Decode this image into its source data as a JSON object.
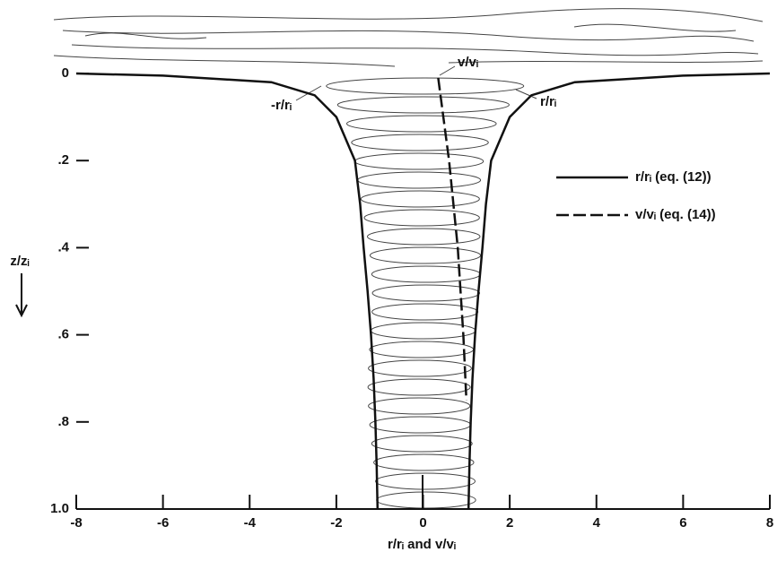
{
  "chart_data": {
    "type": "line",
    "xlabel": "r/rᵢ and v/vᵢ",
    "ylabel": "z/zᵢ",
    "xlim": [
      -8,
      8
    ],
    "xticks": [
      -8,
      -6,
      -4,
      -2,
      0,
      2,
      4,
      6,
      8
    ],
    "ylim": [
      1,
      0
    ],
    "yticks": [
      0,
      {
        "value": 0.2,
        "label": ".2"
      },
      {
        "value": 0.4,
        "label": ".4"
      },
      {
        "value": 0.6,
        "label": ".6"
      },
      {
        "value": 0.8,
        "label": ".8"
      },
      {
        "value": 1,
        "label": "1.0"
      }
    ],
    "series": [
      {
        "name": "r/rᵢ (eq. (12))",
        "color": "#111111",
        "dash": false,
        "x": [
          8,
          6,
          3.5,
          2.5,
          2.0,
          1.57,
          1.45,
          1.37,
          1.28,
          1.2,
          1.14,
          1.1,
          1.07,
          1.05
        ],
        "values": [
          0,
          0.005,
          0.02,
          0.05,
          0.1,
          0.2,
          0.3,
          0.4,
          0.5,
          0.6,
          0.7,
          0.8,
          0.9,
          1
        ]
      },
      {
        "color": "#111111",
        "dash": false,
        "x": [
          -8,
          -6,
          -3.5,
          -2.5,
          -2.0,
          -1.57,
          -1.45,
          -1.37,
          -1.28,
          -1.2,
          -1.14,
          -1.1,
          -1.07,
          -1.05
        ],
        "values": [
          0,
          0.005,
          0.02,
          0.05,
          0.1,
          0.2,
          0.3,
          0.4,
          0.5,
          0.6,
          0.7,
          0.8,
          0.9,
          1
        ]
      },
      {
        "name": "v/vᵢ (eq. (14))",
        "color": "#111111",
        "dash": true,
        "x": [
          0.35,
          0.6,
          0.8,
          0.93,
          1.0
        ],
        "values": [
          0.01,
          0.2,
          0.4,
          0.6,
          0.75
        ]
      }
    ],
    "annotations": [
      "-r/rᵢ",
      "v/vᵢ",
      "r/rᵢ"
    ]
  }
}
